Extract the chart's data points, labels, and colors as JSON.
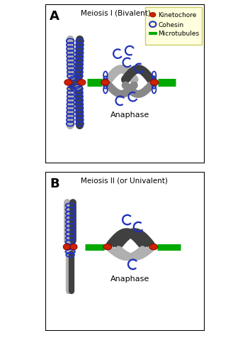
{
  "title_a": "Meiosis I (Bivalent)",
  "title_b": "Meiosis II (or Univalent)",
  "anaphase_label": "Anaphase",
  "legend_items": [
    "Kinetochore",
    "Cohesin",
    "Microtubules"
  ],
  "bg_color": "#ffffff",
  "legend_bg": "#ffffdd",
  "dark_gray": "#404040",
  "light_gray": "#b0b0b0",
  "mid_gray": "#888888",
  "kinetochore_color": "#cc2200",
  "cohesin_color": "#2233bb",
  "microtubule_color": "#00aa00",
  "label_a": "A",
  "label_b": "B"
}
